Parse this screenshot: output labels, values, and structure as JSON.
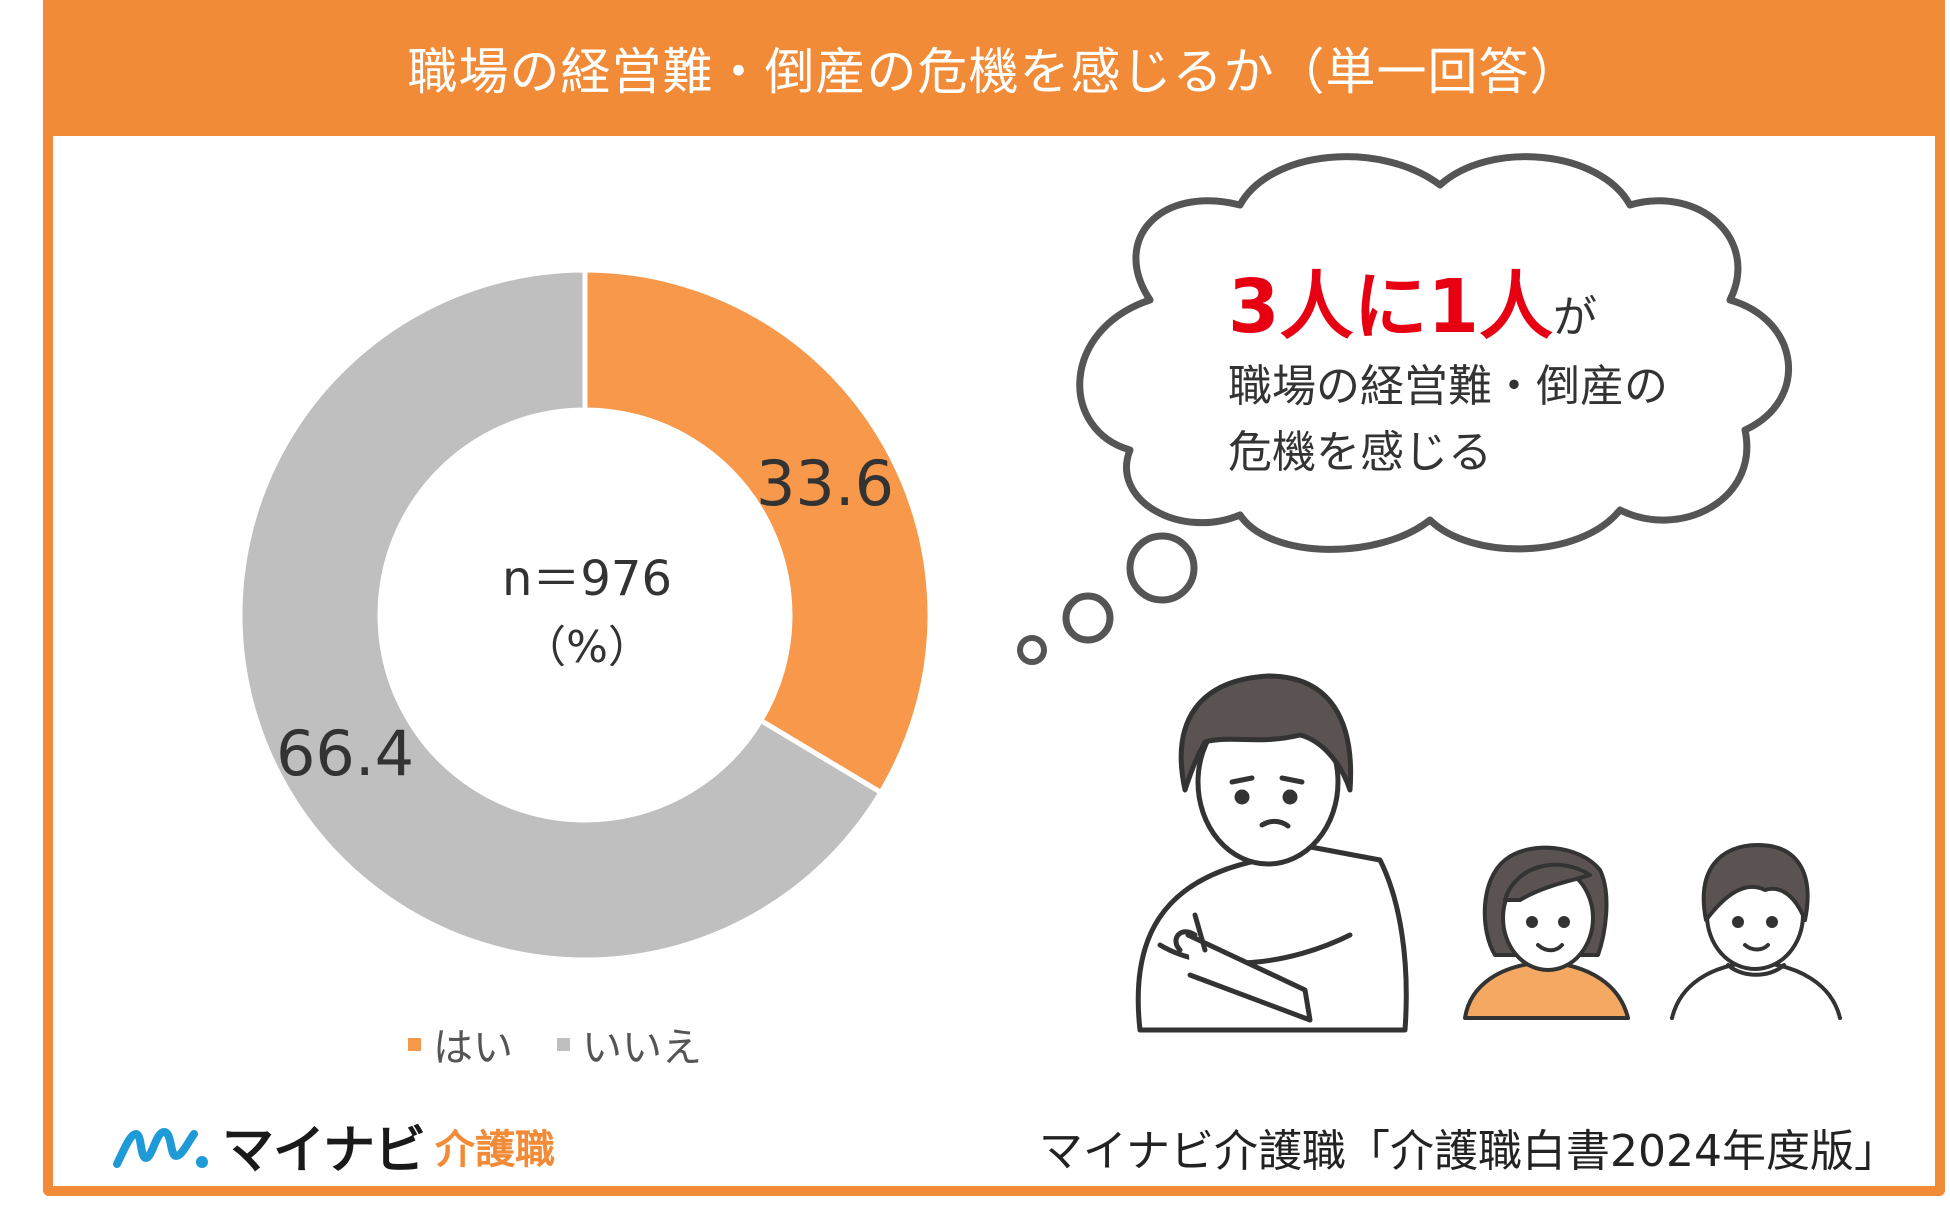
{
  "header": {
    "title": "職場の経営難・倒産の危機を感じるか（単一回答）"
  },
  "chart_data": {
    "type": "pie",
    "subtype": "donut",
    "categories": [
      "はい",
      "いいえ"
    ],
    "values": [
      33.6,
      66.4
    ],
    "value_labels": [
      "33.6",
      "66.4"
    ],
    "colors": [
      "#f7984a",
      "#bfbfbf"
    ],
    "center_text": [
      "n＝976",
      "（%）"
    ],
    "legend": "bottom"
  },
  "bubble": {
    "headline_red": "3人に1人",
    "headline_tail": "が",
    "line1": "職場の経営難・倒産の",
    "line2": "危機を感じる"
  },
  "footer": {
    "logo_name": "マイナビ",
    "logo_sub": "介護職",
    "source": "マイナビ介護職「介護職白書2024年度版」"
  },
  "icons": [
    "thought-bubble-icon",
    "worried-man-illustration",
    "woman-illustration",
    "boy-illustration",
    "mynavi-logo-icon"
  ]
}
